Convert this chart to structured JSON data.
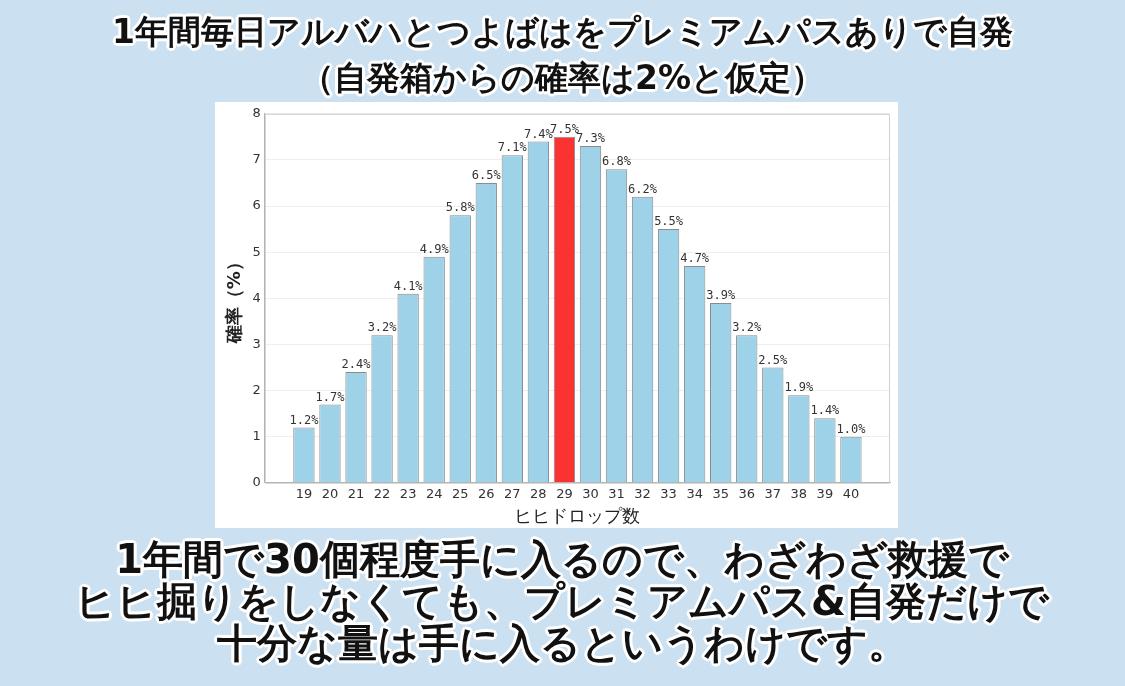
{
  "chart_data": {
    "type": "bar",
    "title": "1年間毎日アルバハとつよばはをプレミアムパスありで自発",
    "subtitle": "（自発箱からの確率は2%と仮定）",
    "xlabel": "ヒヒドロップ数",
    "ylabel": "確率（%）",
    "x": [
      19,
      20,
      21,
      22,
      23,
      24,
      25,
      26,
      27,
      28,
      29,
      30,
      31,
      32,
      33,
      34,
      35,
      36,
      37,
      38,
      39,
      40
    ],
    "values": [
      1.2,
      1.7,
      2.4,
      3.2,
      4.1,
      4.9,
      5.8,
      6.5,
      7.1,
      7.4,
      7.5,
      7.3,
      6.8,
      6.2,
      5.5,
      4.7,
      3.9,
      3.2,
      2.5,
      1.9,
      1.4,
      1.0
    ],
    "value_labels": [
      "1.2%",
      "1.7%",
      "2.4%",
      "3.2%",
      "4.1%",
      "4.9%",
      "5.8%",
      "6.5%",
      "7.1%",
      "7.4%",
      "7.5%",
      "7.3%",
      "6.8%",
      "6.2%",
      "5.5%",
      "4.7%",
      "3.9%",
      "3.2%",
      "2.5%",
      "1.9%",
      "1.4%",
      "1.0%"
    ],
    "colors": [
      "#9dd2e9",
      "#9dd2e9",
      "#9dd2e9",
      "#9dd2e9",
      "#9dd2e9",
      "#9dd2e9",
      "#9dd2e9",
      "#9dd2e9",
      "#9dd2e9",
      "#9dd2e9",
      "#f93232",
      "#9dd2e9",
      "#9dd2e9",
      "#9dd2e9",
      "#9dd2e9",
      "#9dd2e9",
      "#9dd2e9",
      "#9dd2e9",
      "#9dd2e9",
      "#9dd2e9",
      "#9dd2e9",
      "#9dd2e9"
    ],
    "xlim": [
      17.5,
      41.5
    ],
    "xticks": [
      19,
      20,
      21,
      22,
      23,
      24,
      25,
      26,
      27,
      28,
      29,
      30,
      31,
      32,
      33,
      34,
      35,
      36,
      37,
      38,
      39,
      40
    ],
    "ylim": [
      0,
      8
    ],
    "yticks": [
      0,
      1,
      2,
      3,
      4,
      5,
      6,
      7,
      8
    ],
    "grid": "y",
    "annotations": [
      "1年間で30個程度手に入るので、わざわざ救援でヒヒ掘りをしなくても、プレミアムパス&自発だけで十分な量は手に入るというわけです。"
    ]
  }
}
